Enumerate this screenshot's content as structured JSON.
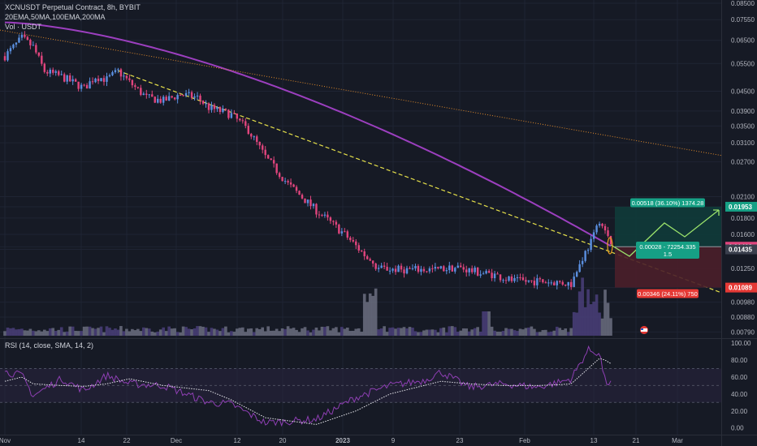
{
  "header": {
    "symbol_line": "XCNUSDT Perpetual Contract, 8h, BYBIT",
    "indicators_line": "20EMA,50MA,100EMA,200MA",
    "volume_line": "Vol · USDT",
    "rsi_line": "RSI (14, close, SMA, 14, 2)"
  },
  "colors": {
    "background": "#161a25",
    "candle_up": "#5a8fe0",
    "candle_down": "#e0457d",
    "ma_line": "#9c3fbf",
    "trend_dashed": "#e6e04a",
    "trend_dotted": "#e08a2a",
    "profit_zone": "#0f3b3a",
    "loss_zone": "#4a1f2a",
    "rsi_line": "#8e3fb3",
    "rsi_band": "#2a2540"
  },
  "chart_data": [
    {
      "type": "candlestick",
      "title": "XCNUSDT Perpetual Contract, 8h, BYBIT",
      "xlabel": "",
      "ylabel": "",
      "scale": "log",
      "ylim": [
        0.0076,
        0.087
      ],
      "x_ticks": [
        "Nov",
        "14",
        "22",
        "Dec",
        "12",
        "20",
        "2023",
        "9",
        "23",
        "Feb",
        "13",
        "21",
        "Mar"
      ],
      "y_ticks": [
        "0.08500",
        "0.07550",
        "0.06500",
        "0.05500",
        "0.04500",
        "0.03900",
        "0.03500",
        "0.03100",
        "0.02700",
        "0.02100",
        "0.01953",
        "0.01800",
        "0.01600",
        "0.01463",
        "0.01435",
        "0.01250",
        "0.01089",
        "0.00980",
        "0.00880",
        "0.00790"
      ],
      "price_markers": [
        {
          "label": "0.01953",
          "color": "#16a085"
        },
        {
          "label": "0.01463",
          "color": "#e0457d"
        },
        {
          "label": "0.01435",
          "color": "#3a3f4d"
        },
        {
          "label": "0.01089",
          "color": "#e53935"
        }
      ],
      "series": [
        {
          "name": "200MA",
          "kind": "moving-average"
        },
        {
          "name": "Vol",
          "kind": "volume"
        }
      ],
      "trade_setup": {
        "target_label": "0.00518 (36.10%) 1374.28",
        "entry_label_line1": "0.00028 - 72254.335",
        "entry_label_line2": "1.5",
        "stop_label": "0.00346 (24.11%) 750"
      }
    },
    {
      "type": "line",
      "title": "RSI (14, close, SMA, 14, 2)",
      "xlabel": "",
      "ylabel": "",
      "ylim": [
        -8,
        104
      ],
      "y_ticks": [
        "100.00",
        "80.00",
        "60.00",
        "40.00",
        "20.00",
        "0.00"
      ],
      "bands": [
        30,
        70
      ],
      "keypoints": [
        {
          "x": 0,
          "rsi": 66,
          "ma": 55
        },
        {
          "x": 3,
          "rsi": 62,
          "ma": 60
        },
        {
          "x": 5,
          "rsi": 38,
          "ma": 52
        },
        {
          "x": 10,
          "rsi": 58,
          "ma": 50
        },
        {
          "x": 14,
          "rsi": 44,
          "ma": 49
        },
        {
          "x": 18,
          "rsi": 62,
          "ma": 52
        },
        {
          "x": 22,
          "rsi": 52,
          "ma": 58
        },
        {
          "x": 28,
          "rsi": 50,
          "ma": 50
        },
        {
          "x": 36,
          "rsi": 30,
          "ma": 44
        },
        {
          "x": 40,
          "rsi": 28,
          "ma": 33
        },
        {
          "x": 46,
          "rsi": 6,
          "ma": 12
        },
        {
          "x": 55,
          "rsi": 10,
          "ma": 4
        },
        {
          "x": 62,
          "rsi": 36,
          "ma": 20
        },
        {
          "x": 68,
          "rsi": 50,
          "ma": 40
        },
        {
          "x": 74,
          "rsi": 56,
          "ma": 50
        },
        {
          "x": 77,
          "rsi": 66,
          "ma": 55
        },
        {
          "x": 82,
          "rsi": 48,
          "ma": 52
        },
        {
          "x": 88,
          "rsi": 52,
          "ma": 50
        },
        {
          "x": 94,
          "rsi": 48,
          "ma": 50
        },
        {
          "x": 98,
          "rsi": 54,
          "ma": 51
        },
        {
          "x": 100,
          "rsi": 58,
          "ma": 52
        },
        {
          "x": 103,
          "rsi": 92,
          "ma": 70
        },
        {
          "x": 105,
          "rsi": 88,
          "ma": 82
        },
        {
          "x": 106,
          "rsi": 55,
          "ma": 80
        },
        {
          "x": 107,
          "rsi": 52,
          "ma": 76
        }
      ]
    }
  ]
}
